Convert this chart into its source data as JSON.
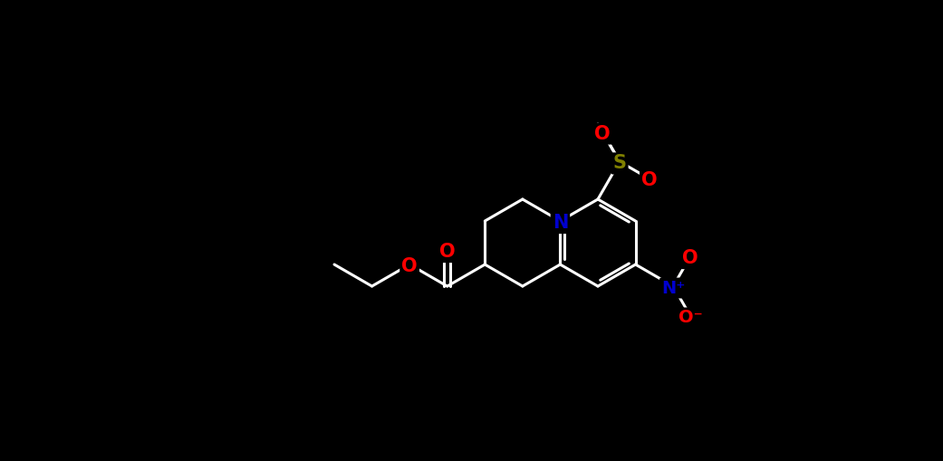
{
  "bg_color": "#000000",
  "bond_color": "#ffffff",
  "atom_colors": {
    "O": "#ff0000",
    "N": "#0000cd",
    "S": "#808000",
    "C": "#ffffff"
  },
  "figsize": [
    10.41,
    5.09
  ],
  "dpi": 100,
  "bond_lw": 2.2,
  "fontsize": 15
}
